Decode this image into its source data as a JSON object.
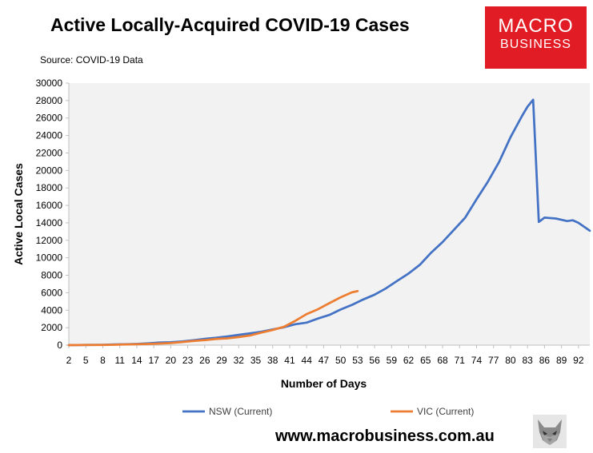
{
  "header": {
    "title": "Active Locally-Acquired COVID-19 Cases",
    "source": "Source: COVID-19 Data"
  },
  "logo": {
    "line1": "MACRO",
    "line2": "BUSINESS"
  },
  "footer": {
    "url": "www.macrobusiness.com.au"
  },
  "colors": {
    "nsw": "#4472c4",
    "vic": "#ed7d31",
    "plot_bg": "#f2f2f2",
    "logo_bg": "#e21c24"
  },
  "chart_data": {
    "type": "line",
    "title": "Active Locally-Acquired COVID-19 Cases",
    "xlabel": "Number of Days",
    "ylabel": "Active Local Cases",
    "xlim": [
      2,
      94
    ],
    "ylim": [
      0,
      30000
    ],
    "x_ticks": [
      2,
      5,
      8,
      11,
      14,
      17,
      20,
      23,
      26,
      29,
      32,
      35,
      38,
      41,
      44,
      47,
      50,
      53,
      56,
      59,
      62,
      65,
      68,
      71,
      74,
      77,
      80,
      83,
      86,
      89,
      92
    ],
    "y_ticks": [
      0,
      2000,
      4000,
      6000,
      8000,
      10000,
      12000,
      14000,
      16000,
      18000,
      20000,
      22000,
      24000,
      26000,
      28000,
      30000
    ],
    "grid": false,
    "legend_position": "bottom",
    "series": [
      {
        "name": "NSW (Current)",
        "color": "#4472c4",
        "x": [
          2,
          5,
          8,
          10,
          12,
          14,
          16,
          18,
          20,
          22,
          24,
          26,
          28,
          30,
          32,
          34,
          36,
          38,
          40,
          42,
          44,
          46,
          48,
          50,
          52,
          54,
          56,
          58,
          60,
          62,
          64,
          66,
          68,
          70,
          72,
          74,
          76,
          78,
          80,
          82,
          83,
          84,
          85,
          86,
          88,
          90,
          91,
          92,
          94
        ],
        "values": [
          0,
          20,
          40,
          80,
          100,
          140,
          200,
          290,
          330,
          420,
          560,
          720,
          840,
          1000,
          1180,
          1350,
          1540,
          1800,
          2050,
          2400,
          2580,
          3050,
          3460,
          4080,
          4610,
          5230,
          5780,
          6500,
          7360,
          8200,
          9200,
          10600,
          11800,
          13200,
          14600,
          16700,
          18700,
          21000,
          23800,
          26200,
          27300,
          28100,
          14100,
          14600,
          14500,
          14200,
          14300,
          14000,
          13100
        ]
      },
      {
        "name": "VIC (Current)",
        "color": "#ed7d31",
        "x": [
          2,
          5,
          8,
          10,
          12,
          14,
          16,
          18,
          20,
          22,
          24,
          26,
          28,
          30,
          32,
          34,
          36,
          38,
          40,
          42,
          44,
          46,
          48,
          50,
          52,
          53
        ],
        "values": [
          0,
          20,
          30,
          50,
          80,
          100,
          140,
          180,
          240,
          360,
          480,
          580,
          700,
          780,
          920,
          1110,
          1440,
          1740,
          2100,
          2780,
          3560,
          4110,
          4800,
          5480,
          6050,
          6180
        ]
      }
    ]
  }
}
